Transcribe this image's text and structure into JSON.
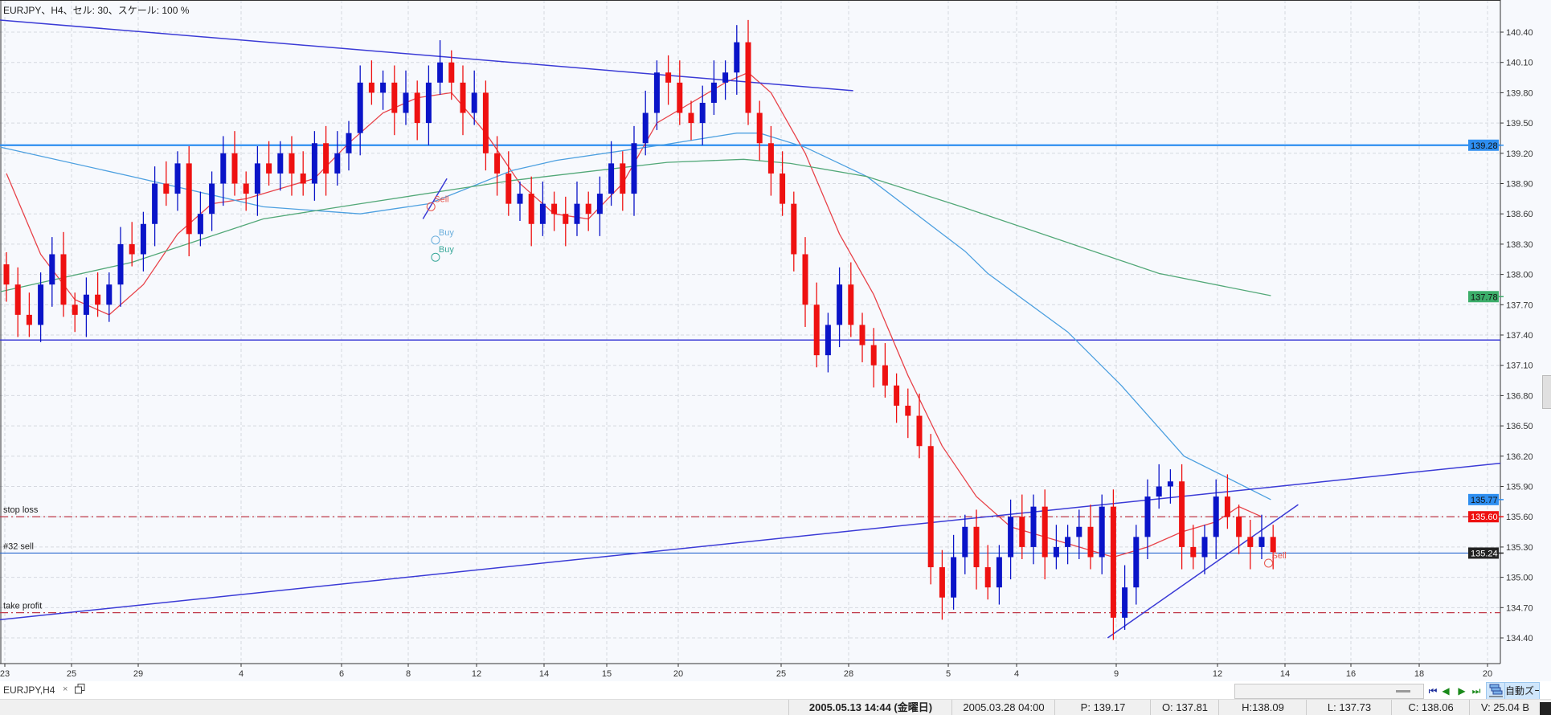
{
  "chart_header": "EURJPY、H4、セル: 30、スケール: 100 %",
  "tab": {
    "label": "EURJPY,H4",
    "close": "×"
  },
  "zoom_button": "自動ズーム",
  "nav_buttons": [
    "⏮",
    "◀",
    "▶",
    "⏭"
  ],
  "status": {
    "datetime": "2005.05.13 14:44 (金曜日)",
    "cursor_time": "2005.03.28 04:00",
    "price": "P: 139.17",
    "open": "O: 137.81",
    "high": "H:138.09",
    "low": "L: 137.73",
    "close": "C: 138.06",
    "volume": "V: 25.04 B"
  },
  "colors": {
    "bull": "#0a14c8",
    "bear": "#ee1111",
    "ma_fast": "#e8434a",
    "ma_mid": "#4da0e0",
    "ma_slow": "#52a878",
    "trendline": "#3b3bd6",
    "hline": "#2e8ef0",
    "stop": "#c03a4a"
  },
  "chart_data": {
    "type": "candlestick",
    "symbol": "EURJPY",
    "timeframe": "H4",
    "ylim": [
      134.25,
      140.7
    ],
    "y_ticks": [
      "140.40",
      "140.10",
      "139.80",
      "139.50",
      "139.20",
      "138.90",
      "138.60",
      "138.30",
      "138.00",
      "137.70",
      "137.40",
      "137.10",
      "136.80",
      "136.50",
      "136.20",
      "135.90",
      "135.60",
      "135.30",
      "135.00",
      "134.70",
      "134.40"
    ],
    "x_ticks": [
      "23",
      "25",
      "29",
      "4",
      "6",
      "8",
      "12",
      "14",
      "15",
      "20",
      "25",
      "28",
      "5",
      "4",
      "9",
      "12",
      "14",
      "16",
      "18",
      "20"
    ],
    "grid": true,
    "first_open": 138.1,
    "closes": [
      137.9,
      137.6,
      137.5,
      137.9,
      138.2,
      137.7,
      137.6,
      137.8,
      137.7,
      137.9,
      138.3,
      138.2,
      138.5,
      138.9,
      138.8,
      139.1,
      138.4,
      138.6,
      138.9,
      139.2,
      138.9,
      138.8,
      139.1,
      139.0,
      139.2,
      139.0,
      138.9,
      139.3,
      139.0,
      139.2,
      139.4,
      139.9,
      139.8,
      139.9,
      139.6,
      139.8,
      139.5,
      139.9,
      140.1,
      139.9,
      139.6,
      139.8,
      139.2,
      139.0,
      138.7,
      138.8,
      138.5,
      138.7,
      138.6,
      138.5,
      138.7,
      138.6,
      138.8,
      139.1,
      138.8,
      139.3,
      139.6,
      140.0,
      139.9,
      139.6,
      139.5,
      139.7,
      139.9,
      140.0,
      140.3,
      139.6,
      139.3,
      139.0,
      138.7,
      138.2,
      137.7,
      137.2,
      137.5,
      137.9,
      137.5,
      137.3,
      137.1,
      136.9,
      136.7,
      136.6,
      136.3,
      135.1,
      134.8,
      135.2,
      135.5,
      135.1,
      134.9,
      135.2,
      135.6,
      135.3,
      135.7,
      135.2,
      135.3,
      135.4,
      135.5,
      135.2,
      135.7,
      134.6,
      134.9,
      135.4,
      135.8,
      135.9,
      135.95,
      135.3,
      135.2,
      135.4,
      135.8,
      135.6,
      135.4,
      135.3,
      135.4,
      135.25
    ],
    "moving_averages": [
      {
        "color_key": "ma_fast",
        "points": [
          [
            0,
            139.0
          ],
          [
            3,
            138.2
          ],
          [
            6,
            137.75
          ],
          [
            9,
            137.6
          ],
          [
            12,
            137.9
          ],
          [
            15,
            138.4
          ],
          [
            18,
            138.7
          ],
          [
            21,
            138.75
          ],
          [
            24,
            138.85
          ],
          [
            27,
            138.95
          ],
          [
            30,
            139.3
          ],
          [
            33,
            139.6
          ],
          [
            36,
            139.75
          ],
          [
            39,
            139.8
          ],
          [
            42,
            139.4
          ],
          [
            45,
            138.9
          ],
          [
            48,
            138.6
          ],
          [
            51,
            138.55
          ],
          [
            54,
            138.9
          ],
          [
            57,
            139.5
          ],
          [
            60,
            139.7
          ],
          [
            63,
            139.9
          ],
          [
            65,
            140.0
          ],
          [
            67,
            139.8
          ],
          [
            70,
            139.2
          ],
          [
            73,
            138.4
          ],
          [
            76,
            137.8
          ],
          [
            79,
            137.0
          ],
          [
            82,
            136.3
          ],
          [
            85,
            135.8
          ],
          [
            88,
            135.5
          ],
          [
            91,
            135.4
          ],
          [
            94,
            135.3
          ],
          [
            97,
            135.2
          ],
          [
            100,
            135.3
          ],
          [
            103,
            135.45
          ],
          [
            106,
            135.55
          ],
          [
            108,
            135.7
          ],
          [
            110,
            135.6
          ]
        ]
      },
      {
        "color_key": "ma_mid",
        "points": [
          [
            -0.5,
            139.26
          ],
          [
            11,
            138.97
          ],
          [
            22.5,
            138.67
          ],
          [
            31,
            138.6
          ],
          [
            37,
            138.7
          ],
          [
            44.3,
            139.03
          ],
          [
            48.2,
            139.13
          ],
          [
            57.9,
            139.29
          ],
          [
            64,
            139.4
          ],
          [
            66,
            139.4
          ],
          [
            70,
            139.26
          ],
          [
            75.4,
            138.97
          ],
          [
            84,
            138.23
          ],
          [
            86,
            138.01
          ],
          [
            93,
            137.43
          ],
          [
            97.7,
            136.9
          ],
          [
            103.2,
            136.2
          ],
          [
            110.8,
            135.77
          ]
        ]
      },
      {
        "color_key": "ma_slow",
        "points": [
          [
            -0.5,
            137.83
          ],
          [
            11,
            138.12
          ],
          [
            22.5,
            138.55
          ],
          [
            31,
            138.7
          ],
          [
            44.3,
            138.93
          ],
          [
            57.9,
            139.11
          ],
          [
            64.6,
            139.14
          ],
          [
            68.7,
            139.1
          ],
          [
            75.4,
            138.97
          ],
          [
            84,
            138.66
          ],
          [
            101,
            138.01
          ],
          [
            110.8,
            137.79
          ]
        ]
      }
    ],
    "trendlines": [
      {
        "from": [
          -0.6,
          140.52
        ],
        "to": [
          74.2,
          139.82
        ]
      },
      {
        "from": [
          -0.6,
          134.58
        ],
        "to": [
          131,
          136.13
        ]
      },
      {
        "from": [
          96.5,
          134.4
        ],
        "to": [
          113.2,
          135.72
        ]
      },
      {
        "from": [
          36.5,
          138.55
        ],
        "to": [
          38.6,
          138.95
        ]
      }
    ],
    "horizontal_lines": [
      {
        "price": 139.28,
        "style": "solid-thick",
        "color_key": "hline"
      },
      {
        "price": 137.35,
        "style": "solid",
        "color_key": "trendline"
      }
    ],
    "order_lines": [
      {
        "label": "stop loss",
        "price": 135.6,
        "style": "dashdot"
      },
      {
        "label": "#32 sell",
        "price": 135.24,
        "style": "solid"
      },
      {
        "label": "take profit",
        "price": 134.65,
        "style": "dashdot"
      }
    ],
    "price_labels": [
      {
        "text": "139.28",
        "price": 139.28,
        "bg": "#2e8ef0",
        "fg": "#111"
      },
      {
        "text": "137.78",
        "price": 137.78,
        "bg": "#3cae6a",
        "fg": "#111"
      },
      {
        "text": "135.77",
        "price": 135.77,
        "bg": "#2e8ef0",
        "fg": "#111"
      },
      {
        "text": "135.60",
        "price": 135.6,
        "bg": "#ee1111",
        "fg": "#fff"
      },
      {
        "text": "135.24",
        "price": 135.24,
        "bg": "#222222",
        "fg": "#fff"
      }
    ],
    "trade_marks": [
      {
        "label": "Sell",
        "index": 37.2,
        "price": 138.75,
        "color": "#e8534a"
      },
      {
        "label": "Buy",
        "index": 37.6,
        "price": 138.42,
        "color": "#6aaedc"
      },
      {
        "label": "Buy",
        "index": 37.6,
        "price": 138.25,
        "color": "#3aa89a"
      },
      {
        "label": "Sell",
        "index": 110.6,
        "price": 135.22,
        "color": "#e8534a"
      }
    ]
  }
}
